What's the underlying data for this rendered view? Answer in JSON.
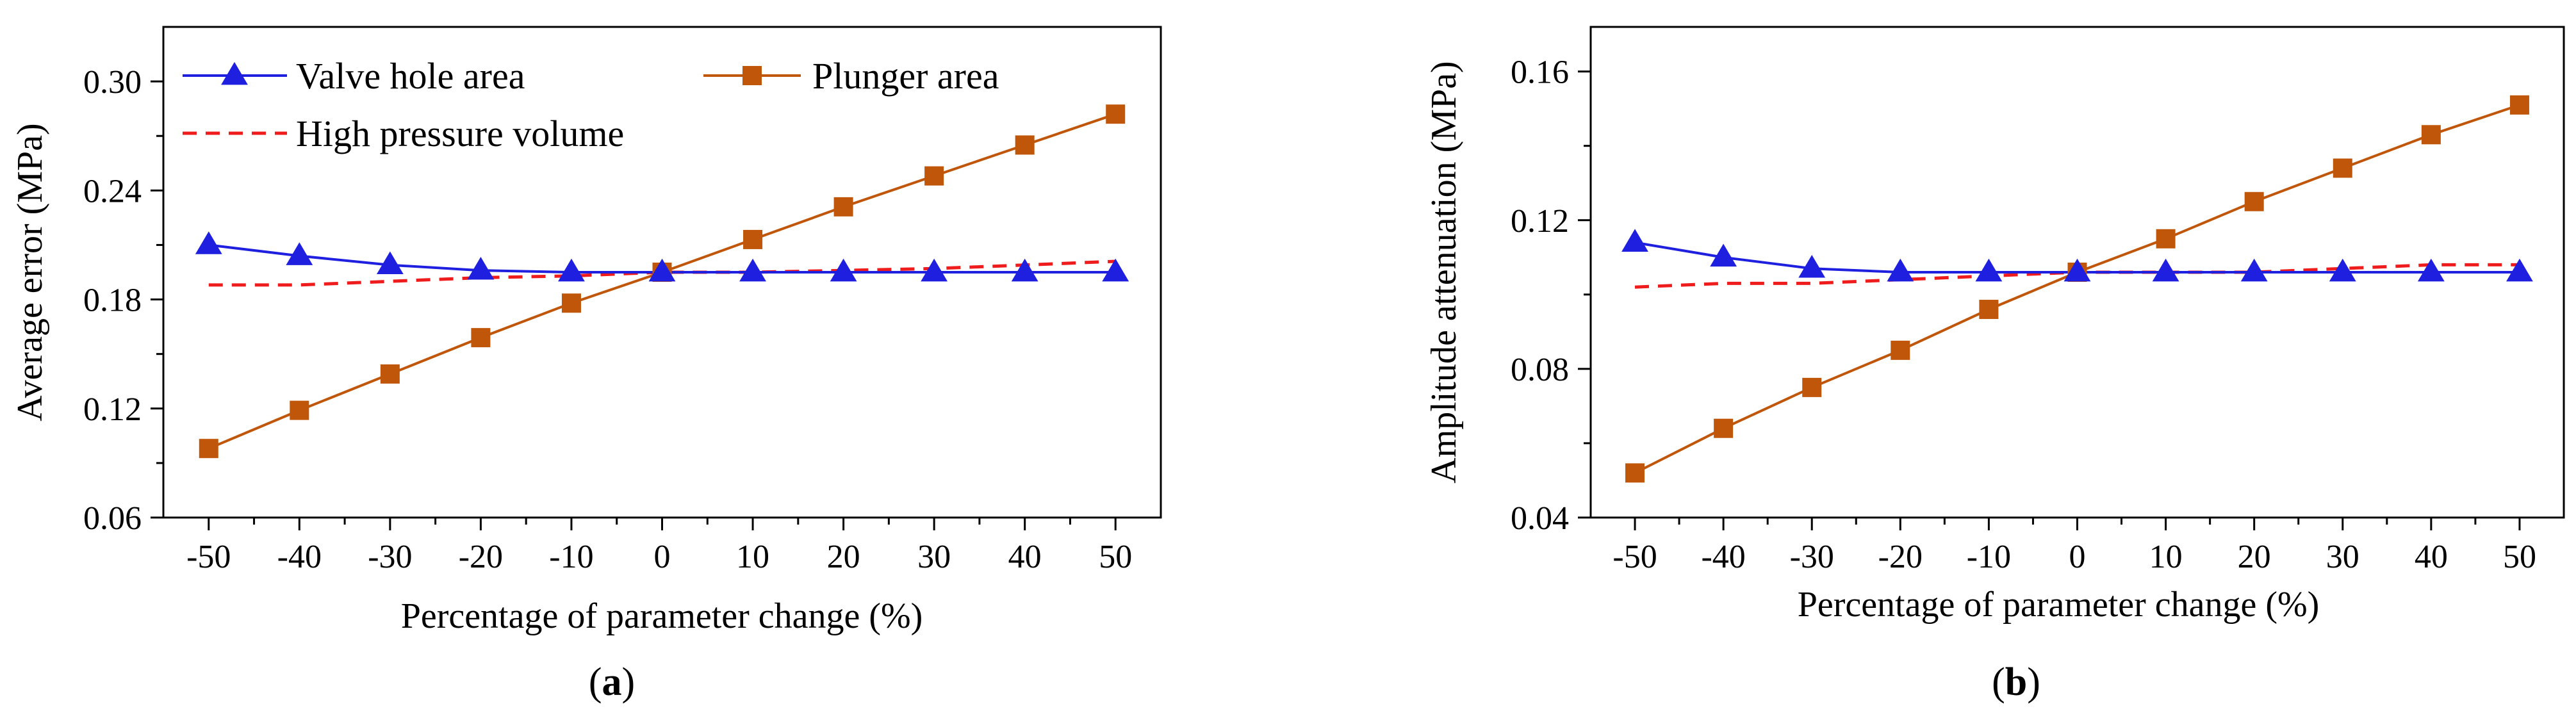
{
  "chart_data": [
    {
      "id": "a",
      "type": "line",
      "panel_label": "a",
      "xlabel": "Percentage of parameter change (%)",
      "ylabel": "Average error (MPa)",
      "x": [
        -50,
        -40,
        -30,
        -20,
        -10,
        0,
        10,
        20,
        30,
        40,
        50
      ],
      "xticks": [
        -50,
        -40,
        -30,
        -20,
        -10,
        0,
        10,
        20,
        30,
        40,
        50
      ],
      "xlim": [
        -55,
        55
      ],
      "ylim": [
        0.06,
        0.33
      ],
      "yticks": [
        0.06,
        0.12,
        0.18,
        0.24,
        0.3
      ],
      "ytick_labels": [
        "0.06",
        "0.12",
        "0.18",
        "0.24",
        "0.30"
      ],
      "grid": false,
      "series": [
        {
          "name": "Valve hole area",
          "color": "#1F1FE0",
          "marker": "triangle",
          "dash": "solid",
          "values": [
            0.21,
            0.204,
            0.199,
            0.196,
            0.195,
            0.195,
            0.195,
            0.195,
            0.195,
            0.195,
            0.195
          ]
        },
        {
          "name": "Plunger area",
          "color": "#C0560A",
          "marker": "square",
          "dash": "solid",
          "values": [
            0.098,
            0.119,
            0.139,
            0.159,
            0.178,
            0.195,
            0.213,
            0.231,
            0.248,
            0.265,
            0.282
          ]
        },
        {
          "name": "High pressure volume",
          "color": "#EE1C1C",
          "marker": "none",
          "dash": "dashed",
          "values": [
            0.188,
            0.188,
            0.19,
            0.192,
            0.193,
            0.195,
            0.195,
            0.196,
            0.197,
            0.199,
            0.201
          ]
        }
      ],
      "legend": {
        "placement": "top-inside",
        "entries": [
          "Valve hole area",
          "Plunger area",
          "High pressure volume"
        ]
      }
    },
    {
      "id": "b",
      "type": "line",
      "panel_label": "b",
      "xlabel": "Percentage of parameter change (%)",
      "ylabel": "Amplitude attenuation (MPa)",
      "x": [
        -50,
        -40,
        -30,
        -20,
        -10,
        0,
        10,
        20,
        30,
        40,
        50
      ],
      "xticks": [
        -50,
        -40,
        -30,
        -20,
        -10,
        0,
        10,
        20,
        30,
        40,
        50
      ],
      "xlim": [
        -55,
        55
      ],
      "ylim": [
        0.04,
        0.172
      ],
      "yticks": [
        0.04,
        0.08,
        0.12,
        0.16
      ],
      "ytick_labels": [
        "0.04",
        "0.08",
        "0.12",
        "0.16"
      ],
      "grid": false,
      "series": [
        {
          "name": "Valve hole area",
          "color": "#1F1FE0",
          "marker": "triangle",
          "dash": "solid",
          "values": [
            0.114,
            0.11,
            0.107,
            0.106,
            0.106,
            0.106,
            0.106,
            0.106,
            0.106,
            0.106,
            0.106
          ]
        },
        {
          "name": "Plunger area",
          "color": "#C0560A",
          "marker": "square",
          "dash": "solid",
          "values": [
            0.052,
            0.064,
            0.075,
            0.085,
            0.096,
            0.106,
            0.115,
            0.125,
            0.134,
            0.143,
            0.151
          ]
        },
        {
          "name": "High pressure volume",
          "color": "#EE1C1C",
          "marker": "none",
          "dash": "dashed",
          "values": [
            0.102,
            0.103,
            0.103,
            0.104,
            0.105,
            0.106,
            0.106,
            0.106,
            0.107,
            0.108,
            0.108
          ]
        }
      ]
    }
  ]
}
